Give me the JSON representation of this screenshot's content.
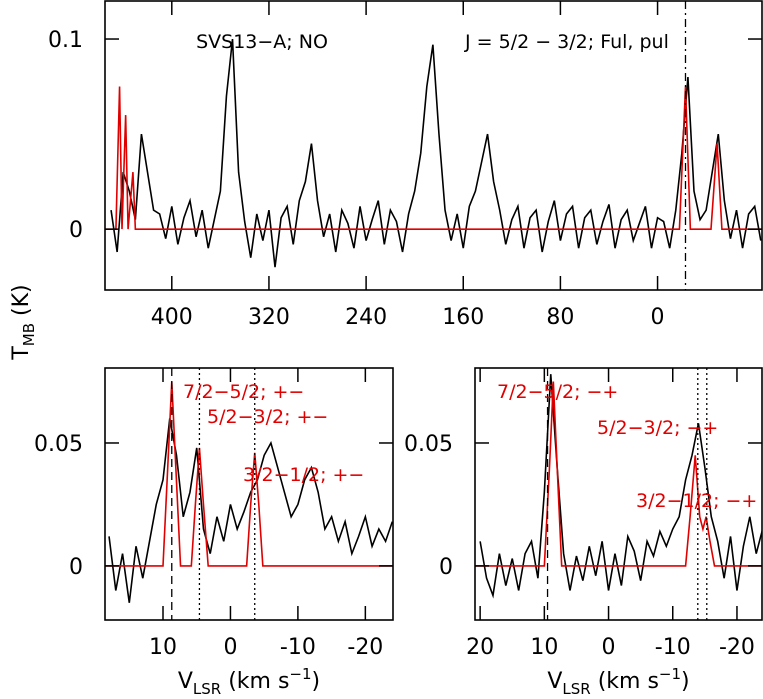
{
  "chart_data": [
    {
      "type": "line",
      "annotations": [
        "SVS13−A; NO",
        "J = 5/2 − 3/2; Ful, pul"
      ],
      "ylabel": {
        "main": "T",
        "sub": "MB",
        "rest": " (K)"
      },
      "xlim": [
        455,
        -86
      ],
      "ylim": [
        -0.032,
        0.12
      ],
      "xticks": [
        400,
        320,
        240,
        160,
        80,
        0
      ],
      "yticks": [
        0,
        0.1
      ],
      "vlines": [
        {
          "value": -23,
          "style": "dashdot"
        }
      ],
      "series": [
        {
          "name": "observed",
          "color": "#000000",
          "x": [
            450,
            445,
            440,
            435,
            430,
            425,
            420,
            415,
            410,
            405,
            400,
            395,
            390,
            385,
            380,
            375,
            370,
            365,
            360,
            355,
            350,
            345,
            340,
            335,
            330,
            325,
            320,
            315,
            310,
            305,
            300,
            295,
            290,
            285,
            280,
            275,
            270,
            265,
            260,
            255,
            250,
            245,
            240,
            235,
            230,
            225,
            220,
            215,
            210,
            205,
            200,
            195,
            190,
            185,
            180,
            175,
            170,
            165,
            160,
            155,
            150,
            145,
            140,
            135,
            130,
            125,
            120,
            115,
            110,
            105,
            100,
            95,
            90,
            85,
            80,
            75,
            70,
            65,
            60,
            55,
            50,
            45,
            40,
            35,
            30,
            25,
            20,
            15,
            10,
            5,
            0,
            -5,
            -10,
            -15,
            -20,
            -25,
            -30,
            -35,
            -40,
            -45,
            -50,
            -55,
            -60,
            -65,
            -70,
            -75,
            -80,
            -85
          ],
          "values": [
            0.01,
            -0.012,
            0.03,
            0.02,
            0.005,
            0.05,
            0.03,
            0.01,
            0.008,
            -0.005,
            0.012,
            -0.008,
            0.006,
            0.015,
            -0.004,
            0.01,
            -0.01,
            0.005,
            0.02,
            0.07,
            0.1,
            0.03,
            0.004,
            -0.015,
            0.008,
            -0.006,
            0.01,
            -0.02,
            0.006,
            0.012,
            -0.008,
            0.015,
            0.025,
            0.045,
            0.015,
            -0.004,
            0.008,
            -0.012,
            0.01,
            0.003,
            -0.01,
            0.012,
            -0.006,
            0.005,
            0.015,
            -0.008,
            0.01,
            0.004,
            -0.012,
            0.008,
            0.02,
            0.04,
            0.075,
            0.097,
            0.05,
            0.01,
            -0.006,
            0.008,
            -0.01,
            0.012,
            0.02,
            0.035,
            0.05,
            0.025,
            0.01,
            -0.008,
            0.005,
            0.012,
            -0.01,
            0.006,
            0.01,
            -0.012,
            0.004,
            0.015,
            -0.006,
            0.008,
            0.012,
            -0.01,
            0.006,
            0.01,
            -0.008,
            0.004,
            0.013,
            -0.01,
            0.005,
            0.01,
            -0.006,
            0.003,
            0.012,
            -0.01,
            0.006,
            0.004,
            -0.01,
            0.01,
            0.04,
            0.08,
            0.02,
            0.005,
            0.01,
            0.03,
            0.05,
            0.015,
            -0.005,
            0.01,
            -0.01,
            0.008,
            0.012,
            -0.006
          ]
        },
        {
          "name": "model",
          "color": "#e00000",
          "x": [
            455,
            446,
            443,
            441,
            438,
            436,
            432,
            430,
            -18,
            -23,
            -27,
            -44,
            -49,
            -53,
            -86
          ],
          "values": [
            0,
            0,
            0.075,
            0,
            0.06,
            0,
            0.03,
            0,
            0,
            0.075,
            0,
            0,
            0.045,
            0,
            0
          ]
        }
      ]
    },
    {
      "type": "line",
      "annotations": [
        "7/2−5/2; +−",
        "5/2−3/2; +−",
        "3/2−1/2; +−"
      ],
      "xlabel": {
        "main": "V",
        "sub": "LSR",
        "unit": " (km s",
        "sup": "−1",
        "close": ")"
      },
      "xlim": [
        18.6,
        -24.1
      ],
      "ylim": [
        -0.022,
        0.0805
      ],
      "xticks": [
        10,
        0,
        -10,
        -20
      ],
      "yticks": [
        0,
        0.05
      ],
      "vlines": [
        {
          "value": 8.7,
          "style": "dashed"
        },
        {
          "value": 4.6,
          "style": "dotted"
        },
        {
          "value": -3.6,
          "style": "dotted"
        }
      ],
      "series": [
        {
          "name": "observed",
          "color": "#000000",
          "x": [
            18,
            17,
            16,
            15,
            14,
            13,
            12,
            11,
            10,
            9,
            8,
            7,
            6,
            5,
            4,
            3,
            2,
            1,
            0,
            -1,
            -2,
            -3,
            -4,
            -5,
            -6,
            -7,
            -8,
            -9,
            -10,
            -11,
            -12,
            -13,
            -14,
            -15,
            -16,
            -17,
            -18,
            -19,
            -20,
            -21,
            -22,
            -23,
            -24
          ],
          "values": [
            0.012,
            -0.01,
            0.005,
            -0.015,
            0.008,
            -0.005,
            0.01,
            0.025,
            0.035,
            0.06,
            0.045,
            0.02,
            0.03,
            0.048,
            0.015,
            0.005,
            0.02,
            0.01,
            0.025,
            0.015,
            0.022,
            0.03,
            0.035,
            0.045,
            0.05,
            0.04,
            0.03,
            0.02,
            0.025,
            0.035,
            0.04,
            0.03,
            0.015,
            0.02,
            0.01,
            0.018,
            0.005,
            0.012,
            0.02,
            0.008,
            0.015,
            0.01,
            0.018
          ]
        },
        {
          "name": "model",
          "color": "#e00000",
          "x": [
            18.6,
            10,
            9.3,
            8.7,
            8.1,
            7.4,
            5.8,
            5.2,
            4.6,
            4,
            3.3,
            -2.4,
            -3,
            -3.6,
            -4.2,
            -4.8,
            -24
          ],
          "values": [
            0,
            0,
            0.04,
            0.075,
            0.04,
            0,
            0,
            0.025,
            0.048,
            0.025,
            0,
            0,
            0.025,
            0.046,
            0.025,
            0,
            0
          ]
        }
      ]
    },
    {
      "type": "line",
      "annotations": [
        "7/2−5/2; −+",
        "5/2−3/2; −+",
        "3/2−1/2; −+"
      ],
      "xlabel": {
        "main": "V",
        "sub": "LSR",
        "unit": " (km s",
        "sup": "−1",
        "close": ")"
      },
      "xlim": [
        20.8,
        -23.9
      ],
      "ylim": [
        -0.022,
        0.0805
      ],
      "xticks": [
        20,
        10,
        0,
        -10,
        -20
      ],
      "yticks": [
        0,
        0.05
      ],
      "vlines": [
        {
          "value": 9.5,
          "style": "dashed"
        },
        {
          "value": -13.9,
          "style": "dotted"
        },
        {
          "value": -15.3,
          "style": "dotted"
        }
      ],
      "series": [
        {
          "name": "observed",
          "color": "#000000",
          "x": [
            20,
            19,
            18,
            17,
            16,
            15,
            14,
            13,
            12,
            11,
            10,
            9,
            8,
            7,
            6,
            5,
            4,
            3,
            2,
            1,
            0,
            -1,
            -2,
            -3,
            -4,
            -5,
            -6,
            -7,
            -8,
            -9,
            -10,
            -11,
            -12,
            -13,
            -14,
            -15,
            -16,
            -17,
            -18,
            -19,
            -20,
            -21,
            -22,
            -23,
            -24
          ],
          "values": [
            0.01,
            -0.005,
            -0.012,
            0.005,
            -0.008,
            0.003,
            -0.01,
            0.005,
            0.01,
            -0.005,
            0.03,
            0.078,
            0.04,
            0.005,
            -0.01,
            0.004,
            -0.006,
            0.008,
            -0.004,
            0.01,
            -0.01,
            0.005,
            -0.008,
            0.012,
            0.006,
            -0.006,
            0.01,
            0.004,
            0.014,
            0.008,
            0.015,
            0.02,
            0.035,
            0.045,
            0.058,
            0.04,
            0.02,
            0.01,
            -0.005,
            0.012,
            -0.01,
            0.008,
            0.02,
            0.005,
            0.015
          ]
        },
        {
          "name": "model",
          "color": "#e00000",
          "x": [
            20.8,
            10,
            9.2,
            8.6,
            8,
            7.3,
            -12,
            -12.7,
            -13.5,
            -14.2,
            -14.7,
            -15.2,
            -15.8,
            -16.5,
            -23.9
          ],
          "values": [
            0,
            0,
            0.04,
            0.075,
            0.04,
            0,
            0,
            0.02,
            0.045,
            0.02,
            0.015,
            0.02,
            0.01,
            0,
            0
          ]
        }
      ]
    }
  ]
}
